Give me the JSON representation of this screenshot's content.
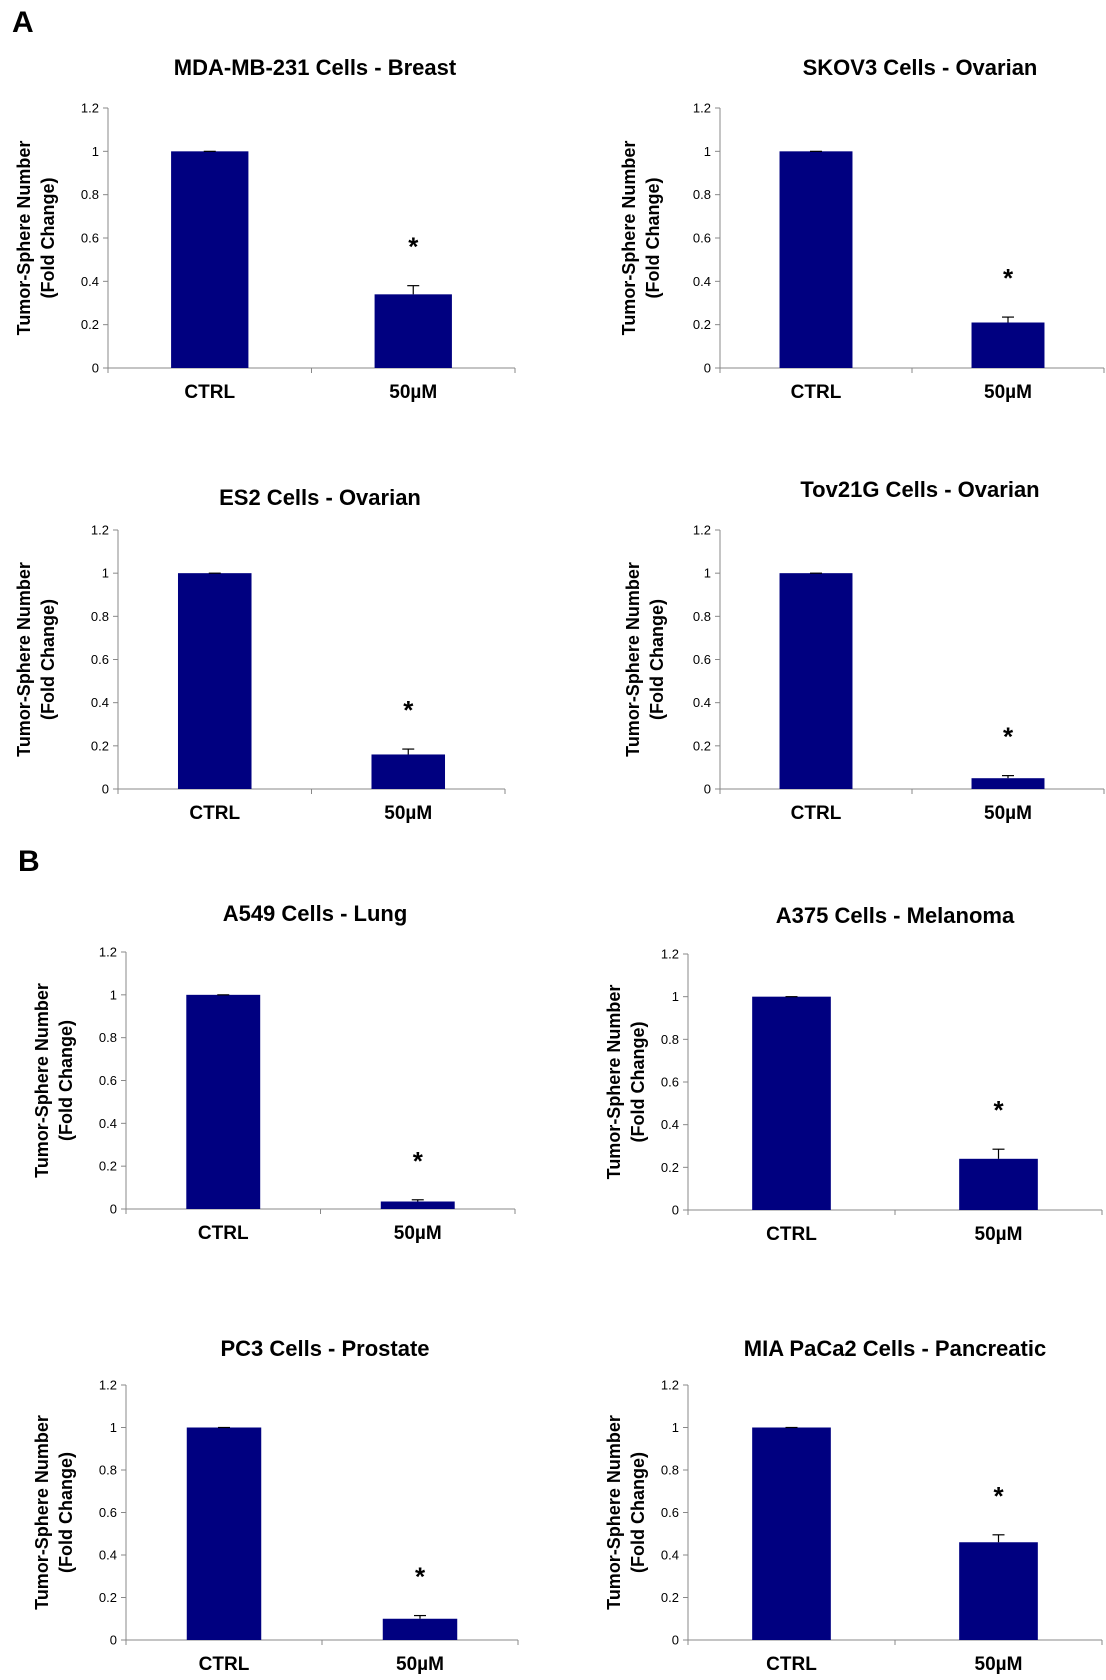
{
  "panels": [
    {
      "label": "A"
    },
    {
      "label": "B"
    }
  ],
  "chart_data": [
    {
      "type": "bar",
      "title": "MDA-MB-231 Cells - Breast",
      "ylabel": "Tumor-Sphere Number\n(Fold Change)",
      "categories": [
        "CTRL",
        "50µM"
      ],
      "values": [
        1.0,
        0.34
      ],
      "errors": [
        0.0,
        0.04
      ],
      "significance": [
        "",
        "*"
      ],
      "ylim": [
        0,
        1.2
      ],
      "yticks": [
        "0",
        "0.2",
        "0.4",
        "0.6",
        "0.8",
        "1",
        "1.2"
      ],
      "bar_color": "#000080"
    },
    {
      "type": "bar",
      "title": "SKOV3 Cells - Ovarian",
      "ylabel": "Tumor-Sphere Number\n(Fold Change)",
      "categories": [
        "CTRL",
        "50µM"
      ],
      "values": [
        1.0,
        0.21
      ],
      "errors": [
        0.0,
        0.025
      ],
      "significance": [
        "",
        "*"
      ],
      "ylim": [
        0,
        1.2
      ],
      "yticks": [
        "0",
        "0.2",
        "0.4",
        "0.6",
        "0.8",
        "1",
        "1.2"
      ],
      "bar_color": "#000080"
    },
    {
      "type": "bar",
      "title": "ES2 Cells - Ovarian",
      "ylabel": "Tumor-Sphere Number\n(Fold Change)",
      "categories": [
        "CTRL",
        "50µM"
      ],
      "values": [
        1.0,
        0.16
      ],
      "errors": [
        0.0,
        0.025
      ],
      "significance": [
        "",
        "*"
      ],
      "ylim": [
        0,
        1.2
      ],
      "yticks": [
        "0",
        "0.2",
        "0.4",
        "0.6",
        "0.8",
        "1",
        "1.2"
      ],
      "bar_color": "#000080"
    },
    {
      "type": "bar",
      "title": "Tov21G Cells - Ovarian",
      "ylabel": "Tumor-Sphere Number\n(Fold Change)",
      "categories": [
        "CTRL",
        "50µM"
      ],
      "values": [
        1.0,
        0.05
      ],
      "errors": [
        0.0,
        0.012
      ],
      "significance": [
        "",
        "*"
      ],
      "ylim": [
        0,
        1.2
      ],
      "yticks": [
        "0",
        "0.2",
        "0.4",
        "0.6",
        "0.8",
        "1",
        "1.2"
      ],
      "bar_color": "#000080"
    },
    {
      "type": "bar",
      "title": "A549 Cells - Lung",
      "ylabel": "Tumor-Sphere Number\n(Fold Change)",
      "categories": [
        "CTRL",
        "50µM"
      ],
      "values": [
        1.0,
        0.035
      ],
      "errors": [
        0.0,
        0.008
      ],
      "significance": [
        "",
        "*"
      ],
      "ylim": [
        0,
        1.2
      ],
      "yticks": [
        "0",
        "0.2",
        "0.4",
        "0.6",
        "0.8",
        "1",
        "1.2"
      ],
      "bar_color": "#000080"
    },
    {
      "type": "bar",
      "title": "A375 Cells - Melanoma",
      "ylabel": "Tumor-Sphere Number\n(Fold Change)",
      "categories": [
        "CTRL",
        "50µM"
      ],
      "values": [
        1.0,
        0.24
      ],
      "errors": [
        0.0,
        0.045
      ],
      "significance": [
        "",
        "*"
      ],
      "ylim": [
        0,
        1.2
      ],
      "yticks": [
        "0",
        "0.2",
        "0.4",
        "0.6",
        "0.8",
        "1",
        "1.2"
      ],
      "bar_color": "#000080"
    },
    {
      "type": "bar",
      "title": "PC3 Cells - Prostate",
      "ylabel": "Tumor-Sphere Number\n(Fold Change)",
      "categories": [
        "CTRL",
        "50µM"
      ],
      "values": [
        1.0,
        0.1
      ],
      "errors": [
        0.0,
        0.015
      ],
      "significance": [
        "",
        "*"
      ],
      "ylim": [
        0,
        1.2
      ],
      "yticks": [
        "0",
        "0.2",
        "0.4",
        "0.6",
        "0.8",
        "1",
        "1.2"
      ],
      "bar_color": "#000080"
    },
    {
      "type": "bar",
      "title": "MIA PaCa2 Cells - Pancreatic",
      "ylabel": "Tumor-Sphere Number\n(Fold Change)",
      "categories": [
        "CTRL",
        "50µM"
      ],
      "values": [
        1.0,
        0.46
      ],
      "errors": [
        0.0,
        0.035
      ],
      "significance": [
        "",
        "*"
      ],
      "ylim": [
        0,
        1.2
      ],
      "yticks": [
        "0",
        "0.2",
        "0.4",
        "0.6",
        "0.8",
        "1",
        "1.2"
      ],
      "bar_color": "#000080"
    }
  ]
}
